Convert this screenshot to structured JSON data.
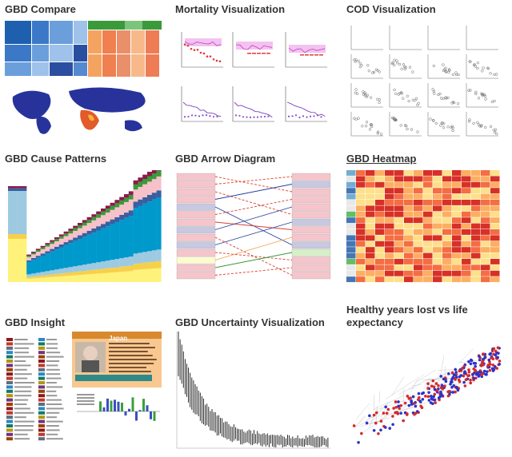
{
  "tiles": [
    {
      "id": "gbd-compare",
      "title": "GBD Compare",
      "icon": "treemap-and-world-map-thumbnail"
    },
    {
      "id": "mortality-visualization",
      "title": "Mortality Visualization",
      "icon": "small-multiples-line-chart-thumbnail"
    },
    {
      "id": "cod-visualization",
      "title": "COD Visualization",
      "icon": "scatter-plot-grid-thumbnail"
    },
    {
      "id": "gbd-cause-patterns",
      "title": "GBD Cause Patterns",
      "icon": "stacked-area-chart-thumbnail"
    },
    {
      "id": "gbd-arrow-diagram",
      "title": "GBD Arrow Diagram",
      "icon": "rank-arrow-diagram-thumbnail"
    },
    {
      "id": "gbd-heatmap",
      "title": "GBD Heatmap",
      "icon": "heatmap-table-thumbnail"
    },
    {
      "id": "gbd-insight",
      "title": "GBD Insight",
      "icon": "insight-dashboard-thumbnail"
    },
    {
      "id": "gbd-uncertainty-visualization",
      "title": "GBD Uncertainty Visualization",
      "icon": "uncertainty-bars-thumbnail"
    },
    {
      "id": "healthy-years-lost",
      "title": "Healthy years lost vs life expectancy",
      "icon": "scatter-trajectory-thumbnail"
    }
  ],
  "colors": {
    "title_text": "#333333",
    "blue": "#2a3fa0",
    "red": "#d94030",
    "orange": "#f0a050",
    "green": "#3a9a3a",
    "teal": "#0099cc",
    "pink": "#f6c5cc"
  },
  "gbd_insight_card": {
    "name": "Japan"
  }
}
